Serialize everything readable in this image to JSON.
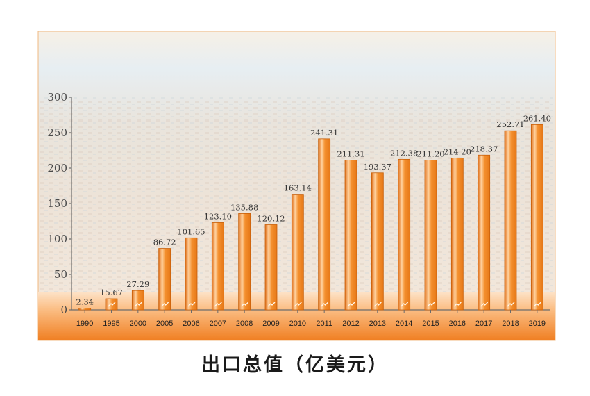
{
  "chart_data": {
    "type": "bar",
    "title": "出口总值（亿美元）",
    "categories": [
      "1990",
      "1995",
      "2000",
      "2005",
      "2006",
      "2007",
      "2008",
      "2009",
      "2010",
      "2011",
      "2012",
      "2013",
      "2014",
      "2015",
      "2016",
      "2017",
      "2018",
      "2019"
    ],
    "values": [
      2.34,
      15.67,
      27.29,
      86.72,
      101.65,
      123.1,
      135.88,
      120.12,
      163.14,
      241.31,
      211.31,
      193.37,
      212.38,
      211.2,
      214.2,
      218.37,
      252.71,
      261.4
    ],
    "value_labels": [
      "2.34",
      "15.67",
      "27.29",
      "86.72",
      "101.65",
      "123.10",
      "135.88",
      "120.12",
      "163.14",
      "241.31",
      "211.31",
      "193.37",
      "212.38",
      "211.20",
      "214.20",
      "218.37",
      "252.71",
      "261.40"
    ],
    "yticks": [
      "0",
      "50",
      "100",
      "150",
      "200",
      "250",
      "300"
    ],
    "ylim": [
      0,
      300
    ],
    "grid": false,
    "colors": {
      "bar": "#f08a24",
      "bar_edge": "#c8600a",
      "highlight": "#ffd9a8",
      "band": "#f7a35a",
      "sky": "#e4eef4"
    }
  }
}
